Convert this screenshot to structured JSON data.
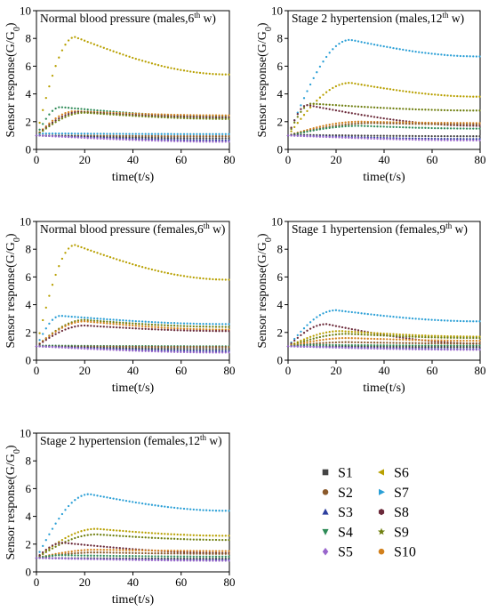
{
  "legend": [
    {
      "label": "S1",
      "color": "#444444",
      "marker": "square"
    },
    {
      "label": "S2",
      "color": "#8b5a2b",
      "marker": "circle"
    },
    {
      "label": "S3",
      "color": "#2c3e9e",
      "marker": "triangle-up"
    },
    {
      "label": "S4",
      "color": "#2e8b57",
      "marker": "triangle-down"
    },
    {
      "label": "S5",
      "color": "#9966cc",
      "marker": "diamond"
    },
    {
      "label": "S6",
      "color": "#b8a000",
      "marker": "triangle-left"
    },
    {
      "label": "S7",
      "color": "#2a9fd6",
      "marker": "triangle-right"
    },
    {
      "label": "S8",
      "color": "#6b2a3a",
      "marker": "hexagon"
    },
    {
      "label": "S9",
      "color": "#6f7f10",
      "marker": "star"
    },
    {
      "label": "S10",
      "color": "#d2801c",
      "marker": "circle"
    }
  ],
  "chart_data": [
    {
      "type": "scatter",
      "title": "Normal blood pressure (males,6",
      "title_sup": "th",
      "title_end": " w)",
      "xlabel": "time(t/s)",
      "ylabel": "Sensor response(G/G",
      "ylabel_sub": "0",
      "ylabel_end": ")",
      "xlim": [
        0,
        80
      ],
      "ylim": [
        0,
        10
      ],
      "xticks": [
        0,
        20,
        40,
        60,
        80
      ],
      "yticks": [
        0,
        2,
        4,
        6,
        8,
        10
      ],
      "series": [
        {
          "name": "S6",
          "peak": 8.1,
          "peak_t": 16,
          "end": 5.4
        },
        {
          "name": "S4",
          "peak": 3.05,
          "peak_t": 10,
          "end": 2.35
        },
        {
          "name": "S10",
          "peak": 2.75,
          "peak_t": 16,
          "end": 2.45
        },
        {
          "name": "S8",
          "peak": 2.7,
          "peak_t": 18,
          "end": 2.3
        },
        {
          "name": "S9",
          "peak": 2.65,
          "peak_t": 20,
          "end": 2.2
        },
        {
          "name": "S7",
          "peak": 1.15,
          "peak_t": 3,
          "end": 1.1
        },
        {
          "name": "S2",
          "peak": 1.0,
          "peak_t": 2,
          "end": 0.95
        },
        {
          "name": "S1",
          "peak": 1.0,
          "peak_t": 1,
          "end": 0.8
        },
        {
          "name": "S3",
          "peak": 1.0,
          "peak_t": 1,
          "end": 0.65
        },
        {
          "name": "S5",
          "peak": 1.0,
          "peak_t": 1,
          "end": 0.55
        }
      ]
    },
    {
      "type": "scatter",
      "title": "Stage 2 hypertension (males,12",
      "title_sup": "th",
      "title_end": " w)",
      "xlabel": "time(t/s)",
      "ylabel": "Sensor response(G/G",
      "ylabel_sub": "0",
      "ylabel_end": ")",
      "xlim": [
        0,
        80
      ],
      "ylim": [
        0,
        10
      ],
      "xticks": [
        0,
        20,
        40,
        60,
        80
      ],
      "yticks": [
        0,
        2,
        4,
        6,
        8,
        10
      ],
      "series": [
        {
          "name": "S7",
          "peak": 7.9,
          "peak_t": 26,
          "end": 6.7
        },
        {
          "name": "S6",
          "peak": 4.8,
          "peak_t": 26,
          "end": 3.8
        },
        {
          "name": "S9",
          "peak": 3.3,
          "peak_t": 10,
          "end": 2.8
        },
        {
          "name": "S8",
          "peak": 3.2,
          "peak_t": 8,
          "end": 1.7
        },
        {
          "name": "S10",
          "peak": 2.0,
          "peak_t": 30,
          "end": 1.9
        },
        {
          "name": "S2",
          "peak": 1.9,
          "peak_t": 35,
          "end": 1.8
        },
        {
          "name": "S4",
          "peak": 1.7,
          "peak_t": 30,
          "end": 1.5
        },
        {
          "name": "S1",
          "peak": 1.05,
          "peak_t": 2,
          "end": 0.95
        },
        {
          "name": "S3",
          "peak": 1.0,
          "peak_t": 1,
          "end": 0.75
        },
        {
          "name": "S5",
          "peak": 1.0,
          "peak_t": 1,
          "end": 0.65
        }
      ]
    },
    {
      "type": "scatter",
      "title": "Normal blood pressure (females,6",
      "title_sup": "th",
      "title_end": " w)",
      "xlabel": "time(t/s)",
      "ylabel": "Sensor response(G/G",
      "ylabel_sub": "0",
      "ylabel_end": ")",
      "xlim": [
        0,
        80
      ],
      "ylim": [
        0,
        10
      ],
      "xticks": [
        0,
        20,
        40,
        60,
        80
      ],
      "yticks": [
        0,
        2,
        4,
        6,
        8,
        10
      ],
      "series": [
        {
          "name": "S6",
          "peak": 8.3,
          "peak_t": 16,
          "end": 5.8
        },
        {
          "name": "S7",
          "peak": 3.2,
          "peak_t": 10,
          "end": 2.6
        },
        {
          "name": "S9",
          "peak": 2.9,
          "peak_t": 20,
          "end": 2.4
        },
        {
          "name": "S10",
          "peak": 2.8,
          "peak_t": 20,
          "end": 2.2
        },
        {
          "name": "S8",
          "peak": 2.5,
          "peak_t": 20,
          "end": 2.1
        },
        {
          "name": "S4",
          "peak": 1.05,
          "peak_t": 2,
          "end": 1.0
        },
        {
          "name": "S2",
          "peak": 1.0,
          "peak_t": 2,
          "end": 0.95
        },
        {
          "name": "S1",
          "peak": 1.0,
          "peak_t": 1,
          "end": 0.8
        },
        {
          "name": "S3",
          "peak": 1.0,
          "peak_t": 1,
          "end": 0.65
        },
        {
          "name": "S5",
          "peak": 1.0,
          "peak_t": 1,
          "end": 0.55
        }
      ]
    },
    {
      "type": "scatter",
      "title": "Stage 1 hypertension (females,9",
      "title_sup": "th",
      "title_end": " w)",
      "xlabel": "time(t/s)",
      "ylabel": "Sensor response(G/G",
      "ylabel_sub": "0",
      "ylabel_end": ")",
      "xlim": [
        0,
        80
      ],
      "ylim": [
        0,
        10
      ],
      "xticks": [
        0,
        20,
        40,
        60,
        80
      ],
      "yticks": [
        0,
        2,
        4,
        6,
        8,
        10
      ],
      "series": [
        {
          "name": "S7",
          "peak": 3.6,
          "peak_t": 20,
          "end": 2.8
        },
        {
          "name": "S8",
          "peak": 2.6,
          "peak_t": 16,
          "end": 1.2
        },
        {
          "name": "S6",
          "peak": 2.1,
          "peak_t": 22,
          "end": 1.7
        },
        {
          "name": "S9",
          "peak": 1.9,
          "peak_t": 25,
          "end": 1.6
        },
        {
          "name": "S10",
          "peak": 1.6,
          "peak_t": 25,
          "end": 1.4
        },
        {
          "name": "S2",
          "peak": 1.3,
          "peak_t": 25,
          "end": 1.2
        },
        {
          "name": "S4",
          "peak": 1.1,
          "peak_t": 10,
          "end": 1.05
        },
        {
          "name": "S1",
          "peak": 1.0,
          "peak_t": 1,
          "end": 0.95
        },
        {
          "name": "S3",
          "peak": 1.0,
          "peak_t": 1,
          "end": 0.8
        },
        {
          "name": "S5",
          "peak": 1.0,
          "peak_t": 1,
          "end": 0.75
        }
      ]
    },
    {
      "type": "scatter",
      "title": "Stage 2 hypertension (females,12",
      "title_sup": "th",
      "title_end": " w)",
      "xlabel": "time(t/s)",
      "ylabel": "Sensor response(G/G",
      "ylabel_sub": "0",
      "ylabel_end": ")",
      "xlim": [
        0,
        80
      ],
      "ylim": [
        0,
        10
      ],
      "xticks": [
        0,
        20,
        40,
        60,
        80
      ],
      "yticks": [
        0,
        2,
        4,
        6,
        8,
        10
      ],
      "series": [
        {
          "name": "S7",
          "peak": 5.6,
          "peak_t": 22,
          "end": 4.4
        },
        {
          "name": "S6",
          "peak": 3.1,
          "peak_t": 25,
          "end": 2.6
        },
        {
          "name": "S9",
          "peak": 2.7,
          "peak_t": 25,
          "end": 2.3
        },
        {
          "name": "S8",
          "peak": 2.1,
          "peak_t": 11,
          "end": 1.35
        },
        {
          "name": "S10",
          "peak": 1.6,
          "peak_t": 25,
          "end": 1.5
        },
        {
          "name": "S2",
          "peak": 1.4,
          "peak_t": 25,
          "end": 1.3
        },
        {
          "name": "S4",
          "peak": 1.2,
          "peak_t": 10,
          "end": 1.1
        },
        {
          "name": "S1",
          "peak": 1.0,
          "peak_t": 1,
          "end": 0.95
        },
        {
          "name": "S3",
          "peak": 1.0,
          "peak_t": 1,
          "end": 0.85
        },
        {
          "name": "S5",
          "peak": 1.0,
          "peak_t": 1,
          "end": 0.8
        }
      ]
    }
  ]
}
